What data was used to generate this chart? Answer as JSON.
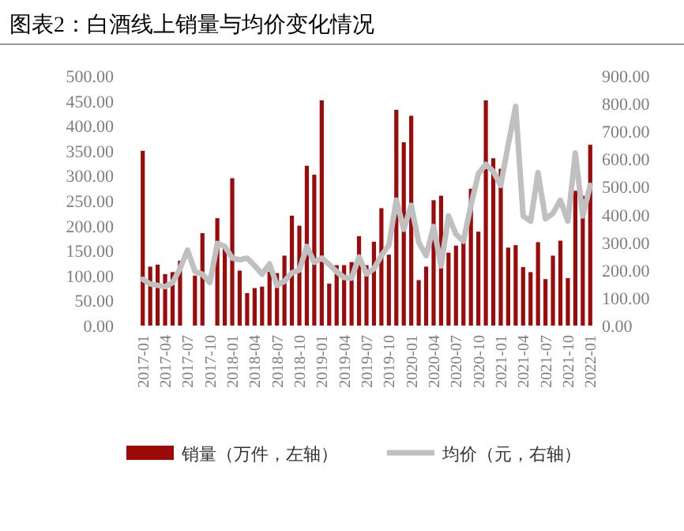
{
  "chart_data": {
    "type": "bar",
    "title": "图表2：白酒线上销量与均价变化情况",
    "categories": [
      "2017-01",
      null,
      null,
      "2017-04",
      null,
      null,
      "2017-07",
      null,
      null,
      "2017-10",
      null,
      null,
      "2018-01",
      null,
      null,
      "2018-04",
      null,
      null,
      "2018-07",
      null,
      null,
      "2018-10",
      null,
      null,
      "2019-01",
      null,
      null,
      "2019-04",
      null,
      null,
      "2019-07",
      null,
      null,
      "2019-10",
      null,
      null,
      "2020-01",
      null,
      null,
      "2020-04",
      null,
      null,
      "2020-07",
      null,
      null,
      "2020-10",
      null,
      null,
      "2021-01",
      null,
      null,
      "2021-04",
      null,
      null,
      "2021-07",
      null,
      null,
      "2021-10",
      null,
      null,
      "2022-01"
    ],
    "series": [
      {
        "name": "销量（万件，左轴）",
        "color": "#9c0a0a",
        "values": [
          350,
          118,
          122,
          103,
          107,
          130,
          null,
          100,
          185,
          null,
          215,
          160,
          295,
          110,
          65,
          75,
          78,
          108,
          105,
          140,
          220,
          200,
          320,
          302,
          451,
          84,
          121,
          121,
          127,
          179,
          121,
          168,
          235,
          142,
          432,
          367,
          420,
          91,
          118,
          251,
          260,
          146,
          160,
          172,
          274,
          188,
          451,
          335,
          314,
          156,
          161,
          117,
          107,
          167,
          93,
          140,
          170,
          95,
          270,
          260,
          362
        ]
      },
      {
        "name": "均价（元，右轴）",
        "type": "line",
        "axis": "y2",
        "color": "#c0c0c0",
        "values": [
          167,
          150,
          145,
          140,
          155,
          205,
          272,
          195,
          185,
          155,
          296,
          285,
          243,
          237,
          243,
          216,
          185,
          222,
          145,
          160,
          190,
          200,
          285,
          228,
          243,
          220,
          194,
          173,
          171,
          247,
          186,
          205,
          252,
          290,
          452,
          347,
          433,
          300,
          252,
          357,
          215,
          395,
          329,
          304,
          433,
          547,
          581,
          556,
          505,
          651,
          790,
          395,
          376,
          551,
          385,
          404,
          452,
          376,
          622,
          395,
          505
        ]
      }
    ],
    "ylim": [
      0,
      500
    ],
    "yticks": [
      {
        "value": 0,
        "label": "0.00"
      },
      {
        "value": 50,
        "label": "50.00"
      },
      {
        "value": 100,
        "label": "100.00"
      },
      {
        "value": 150,
        "label": "150.00"
      },
      {
        "value": 200,
        "label": "200.00"
      },
      {
        "value": 250,
        "label": "250.00"
      },
      {
        "value": 300,
        "label": "300.00"
      },
      {
        "value": 350,
        "label": "350.00"
      },
      {
        "value": 400,
        "label": "400.00"
      },
      {
        "value": 450,
        "label": "450.00"
      },
      {
        "value": 500,
        "label": "500.00"
      }
    ],
    "y2lim": [
      0,
      900
    ],
    "y2ticks": [
      {
        "value": 0,
        "label": "0.00"
      },
      {
        "value": 100,
        "label": "100.00"
      },
      {
        "value": 200,
        "label": "200.00"
      },
      {
        "value": 300,
        "label": "300.00"
      },
      {
        "value": 400,
        "label": "400.00"
      },
      {
        "value": 500,
        "label": "500.00"
      },
      {
        "value": 600,
        "label": "600.00"
      },
      {
        "value": 700,
        "label": "700.00"
      },
      {
        "value": 800,
        "label": "800.00"
      },
      {
        "value": 900,
        "label": "900.00"
      }
    ],
    "grid": false,
    "legend": "bottom"
  }
}
